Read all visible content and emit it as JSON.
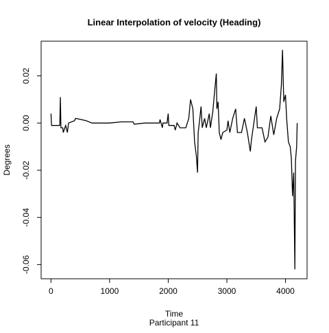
{
  "chart_data": {
    "type": "line",
    "title": "Linear Interpolation of velocity (Heading)",
    "xlabel": "Time",
    "subtitle": "Participant  11",
    "ylabel": "Degrees",
    "x": [
      0,
      10,
      150,
      160,
      170,
      200,
      210,
      250,
      280,
      300,
      400,
      420,
      600,
      700,
      1000,
      1200,
      1400,
      1420,
      1600,
      1850,
      1860,
      1900,
      1910,
      1980,
      2000,
      2010,
      2100,
      2120,
      2150,
      2200,
      2300,
      2350,
      2380,
      2420,
      2450,
      2480,
      2500,
      2510,
      2530,
      2560,
      2580,
      2620,
      2650,
      2700,
      2720,
      2760,
      2790,
      2820,
      2830,
      2850,
      2870,
      2900,
      2930,
      3000,
      3020,
      3050,
      3100,
      3150,
      3180,
      3250,
      3300,
      3350,
      3400,
      3420,
      3500,
      3520,
      3600,
      3650,
      3700,
      3750,
      3800,
      3850,
      3900,
      3930,
      3950,
      3970,
      4000,
      4020,
      4050,
      4080,
      4100,
      4120,
      4140,
      4160,
      4170,
      4190,
      4200
    ],
    "series": [
      {
        "name": "velocity",
        "color": "#000000",
        "values": [
          0.004,
          -0.001,
          -0.001,
          0.011,
          -0.002,
          -0.002,
          -0.004,
          -0.001,
          -0.004,
          0.0,
          0.001,
          0.002,
          0.001,
          0.0,
          0.0,
          0.0005,
          0.0005,
          -0.0005,
          0.0,
          0.0,
          0.0015,
          -0.002,
          0.0,
          0.0,
          0.004,
          -0.001,
          -0.001,
          -0.003,
          0.0,
          -0.002,
          -0.002,
          0.002,
          0.01,
          0.006,
          -0.008,
          -0.014,
          -0.021,
          -0.004,
          0.0,
          0.007,
          -0.002,
          0.002,
          -0.002,
          0.004,
          -0.002,
          0.005,
          0.013,
          0.021,
          0.006,
          0.009,
          -0.004,
          -0.007,
          -0.004,
          -0.003,
          0.001,
          -0.004,
          0.002,
          0.006,
          -0.004,
          -0.004,
          0.002,
          -0.004,
          -0.012,
          -0.007,
          0.007,
          -0.002,
          -0.002,
          -0.008,
          -0.006,
          0.003,
          -0.005,
          0.002,
          0.006,
          0.016,
          0.031,
          0.009,
          0.012,
          0.002,
          -0.008,
          -0.01,
          -0.015,
          -0.031,
          -0.021,
          -0.062,
          -0.016,
          -0.01,
          0.0
        ]
      }
    ],
    "xlim": [
      -168,
      4368
    ],
    "xticks": [
      0,
      1000,
      2000,
      3000,
      4000
    ],
    "ylim": [
      -0.066,
      0.0347
    ],
    "yticks": [
      -0.06,
      -0.04,
      -0.02,
      {
        "value": 0,
        "label": "0.00"
      },
      0.02
    ]
  }
}
